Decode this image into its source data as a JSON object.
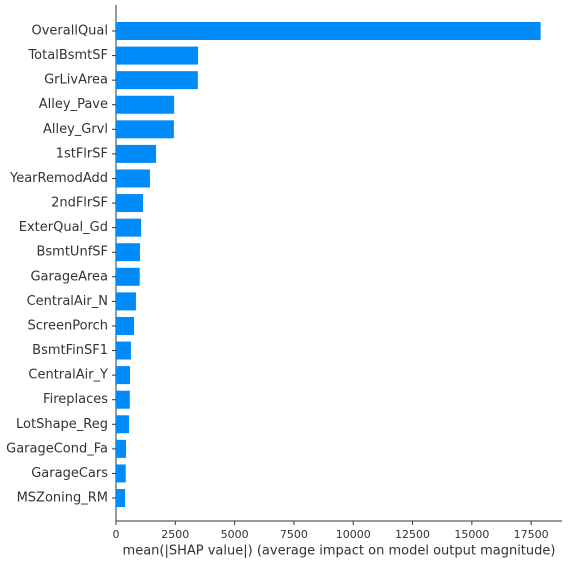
{
  "chart_data": {
    "type": "bar",
    "orientation": "horizontal",
    "xlabel": "mean(|SHAP value|) (average impact on model output magnitude)",
    "categories": [
      "OverallQual",
      "TotalBsmtSF",
      "GrLivArea",
      "Alley_Pave",
      "Alley_Grvl",
      "1stFlrSF",
      "YearRemodAdd",
      "2ndFlrSF",
      "ExterQual_Gd",
      "BsmtUnfSF",
      "GarageArea",
      "CentralAir_N",
      "ScreenPorch",
      "BsmtFinSF1",
      "CentralAir_Y",
      "Fireplaces",
      "LotShape_Reg",
      "GarageCond_Fa",
      "GarageCars",
      "MSZoning_RM"
    ],
    "values": [
      17900,
      3460,
      3450,
      2450,
      2440,
      1690,
      1430,
      1140,
      1060,
      1010,
      1000,
      840,
      760,
      630,
      590,
      580,
      550,
      420,
      410,
      380
    ],
    "color": "#008bfb",
    "xlim": [
      0,
      18800
    ],
    "xticks": [
      0,
      2500,
      5000,
      7500,
      10000,
      12500,
      15000,
      17500
    ]
  }
}
